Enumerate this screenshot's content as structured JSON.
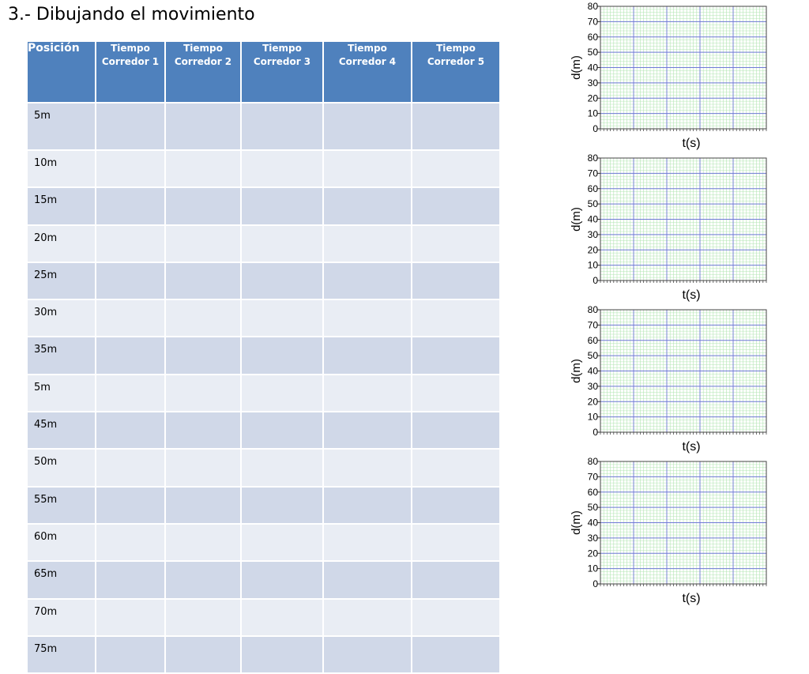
{
  "title": "3.- Dibujando el movimiento",
  "table": {
    "headers": [
      {
        "line1": "Posición",
        "line2": ""
      },
      {
        "line1": "Tiempo",
        "line2": "Corredor 1"
      },
      {
        "line1": "Tiempo",
        "line2": "Corredor 2"
      },
      {
        "line1": "Tiempo",
        "line2": "Corredor 3"
      },
      {
        "line1": "Tiempo",
        "line2": "Corredor 4"
      },
      {
        "line1": "Tiempo",
        "line2": "Corredor 5"
      }
    ],
    "rows": [
      "5m",
      "10m",
      "15m",
      "20m",
      "25m",
      "30m",
      "35m",
      "5m",
      "45m",
      "50m",
      "55m",
      "60m",
      "65m",
      "70m",
      "75m"
    ],
    "colors": {
      "header": "#4f81bd",
      "row_odd": "#d0d8e8",
      "row_even": "#e9edf4"
    }
  },
  "graphs": [
    {
      "ylabel": "d(m)",
      "xlabel": "t(s)",
      "yticks": [
        "0",
        "10",
        "20",
        "30",
        "40",
        "50",
        "60",
        "70",
        "80"
      ]
    },
    {
      "ylabel": "d(m)",
      "xlabel": "t(s)",
      "yticks": [
        "0",
        "10",
        "20",
        "30",
        "40",
        "50",
        "60",
        "70",
        "80"
      ]
    },
    {
      "ylabel": "d(m)",
      "xlabel": "t(s)",
      "yticks": [
        "0",
        "10",
        "20",
        "30",
        "40",
        "50",
        "60",
        "70",
        "80"
      ]
    },
    {
      "ylabel": "d(m)",
      "xlabel": "t(s)",
      "yticks": [
        "0",
        "10",
        "20",
        "30",
        "40",
        "50",
        "60",
        "70",
        "80"
      ]
    }
  ],
  "chart_data": [
    {
      "type": "line",
      "xlabel": "t(s)",
      "ylabel": "d(m)",
      "ylim": [
        0,
        80
      ],
      "yticks": [
        0,
        10,
        20,
        30,
        40,
        50,
        60,
        70,
        80
      ],
      "series": [],
      "grid": true
    },
    {
      "type": "line",
      "xlabel": "t(s)",
      "ylabel": "d(m)",
      "ylim": [
        0,
        80
      ],
      "yticks": [
        0,
        10,
        20,
        30,
        40,
        50,
        60,
        70,
        80
      ],
      "series": [],
      "grid": true
    },
    {
      "type": "line",
      "xlabel": "t(s)",
      "ylabel": "d(m)",
      "ylim": [
        0,
        80
      ],
      "yticks": [
        0,
        10,
        20,
        30,
        40,
        50,
        60,
        70,
        80
      ],
      "series": [],
      "grid": true
    },
    {
      "type": "line",
      "xlabel": "t(s)",
      "ylabel": "d(m)",
      "ylim": [
        0,
        80
      ],
      "yticks": [
        0,
        10,
        20,
        30,
        40,
        50,
        60,
        70,
        80
      ],
      "series": [],
      "grid": true
    }
  ]
}
